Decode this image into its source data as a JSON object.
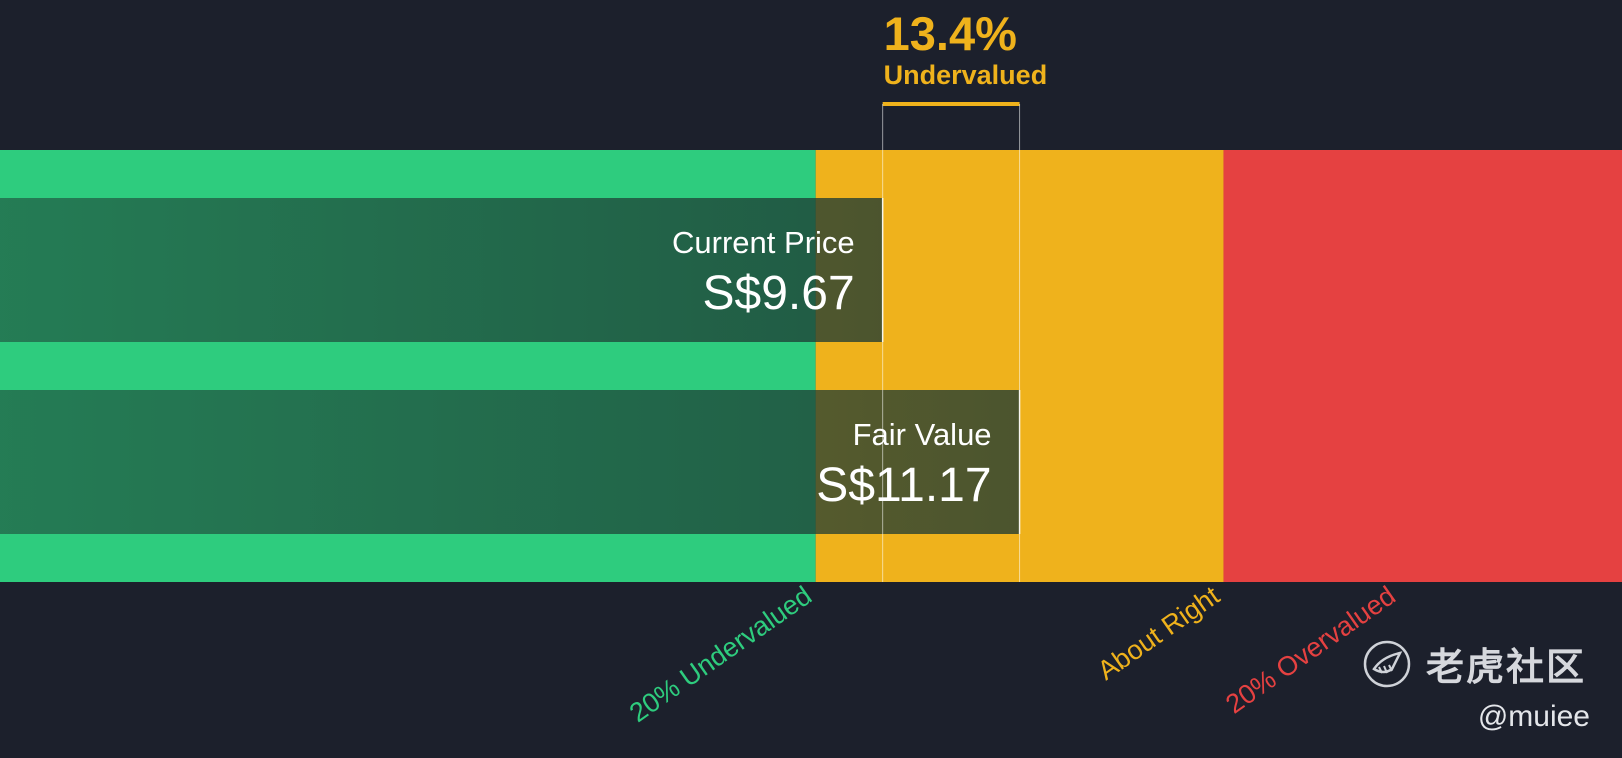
{
  "chart_data": {
    "type": "bar",
    "title": "",
    "currency": "S$",
    "unit": "%",
    "difference_pct": 13.4,
    "difference_label": "13.4%",
    "verdict": "Undervalued",
    "bars": [
      {
        "name": "Current Price",
        "value": 9.67,
        "value_label": "S$9.67"
      },
      {
        "name": "Fair Value",
        "value": 11.17,
        "value_label": "S$11.17"
      }
    ],
    "zones": [
      {
        "name": "20% Undervalued",
        "from": 0,
        "to": 8.936,
        "color": "#2ecc7e"
      },
      {
        "name": "About Right",
        "from": 8.936,
        "to": 13.404,
        "color": "#efb21c"
      },
      {
        "name": "20% Overvalued",
        "from": 13.404,
        "to": 17.77,
        "color": "#e54141"
      }
    ],
    "xlim": [
      0,
      17.77
    ]
  },
  "colors": {
    "background": "#1c202c",
    "undervalued": "#2ecc7e",
    "about_right": "#efb21c",
    "overvalued": "#e54141",
    "bar_fill": "#1c4b3c"
  },
  "watermark": {
    "logo_icon": "tiger-logo-icon",
    "brand_name": "老虎社区",
    "handle": "@muiee"
  }
}
